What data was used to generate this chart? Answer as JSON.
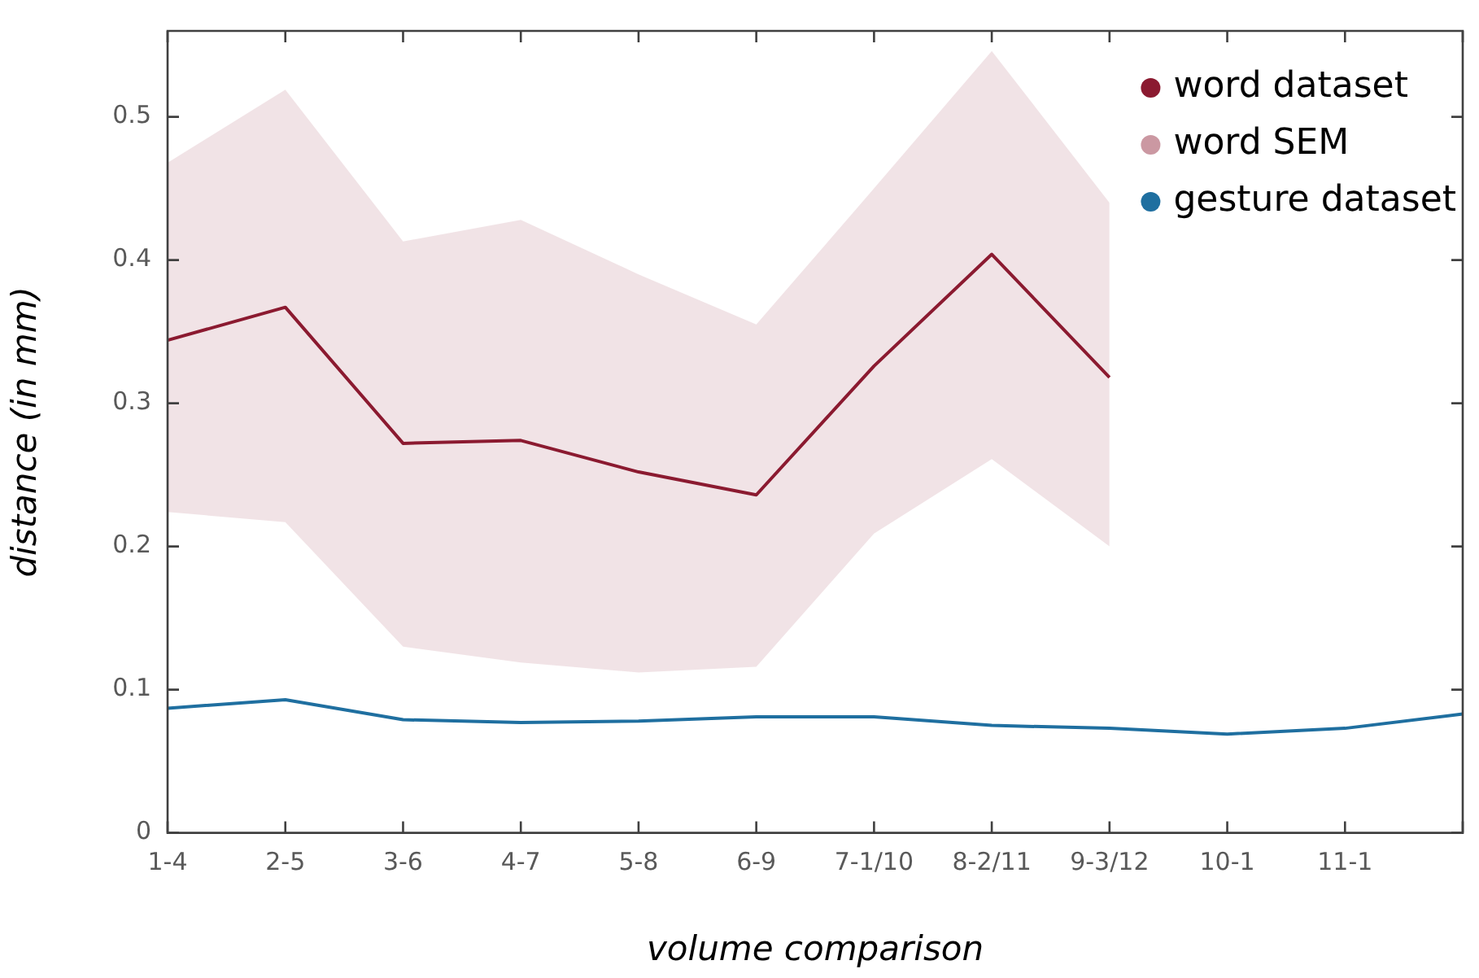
{
  "chart_data": {
    "type": "line",
    "xlabel": "volume comparison",
    "ylabel": "distance (in mm)",
    "categories": [
      "1-4",
      "2-5",
      "3-6",
      "4-7",
      "5-8",
      "6-9",
      "7-1/10",
      "8-2/11",
      "9-3/12",
      "10-1",
      "11-1",
      null
    ],
    "series": [
      {
        "name": "word dataset",
        "color": "#8b1a30",
        "values": [
          0.344,
          0.367,
          0.272,
          0.274,
          0.252,
          0.236,
          0.326,
          0.404,
          0.318,
          null,
          null,
          null
        ],
        "lower": [
          0.224,
          0.217,
          0.13,
          0.119,
          0.112,
          0.116,
          0.209,
          0.261,
          0.2,
          null,
          null,
          null
        ],
        "upper": [
          0.468,
          0.519,
          0.413,
          0.428,
          0.39,
          0.355,
          0.45,
          0.546,
          0.44,
          null,
          null,
          null
        ]
      },
      {
        "name": "gesture dataset",
        "color": "#1f6fa0",
        "values": [
          0.087,
          0.093,
          0.079,
          0.077,
          0.078,
          0.081,
          0.081,
          0.075,
          0.073,
          0.069,
          0.073,
          0.083
        ]
      }
    ],
    "annotations": [
      "word SEM"
    ],
    "ylim": [
      0,
      0.56
    ],
    "yticks": [
      0,
      0.1,
      0.2,
      0.3,
      0.4,
      0.5
    ],
    "grid": false,
    "legend": "top right"
  }
}
